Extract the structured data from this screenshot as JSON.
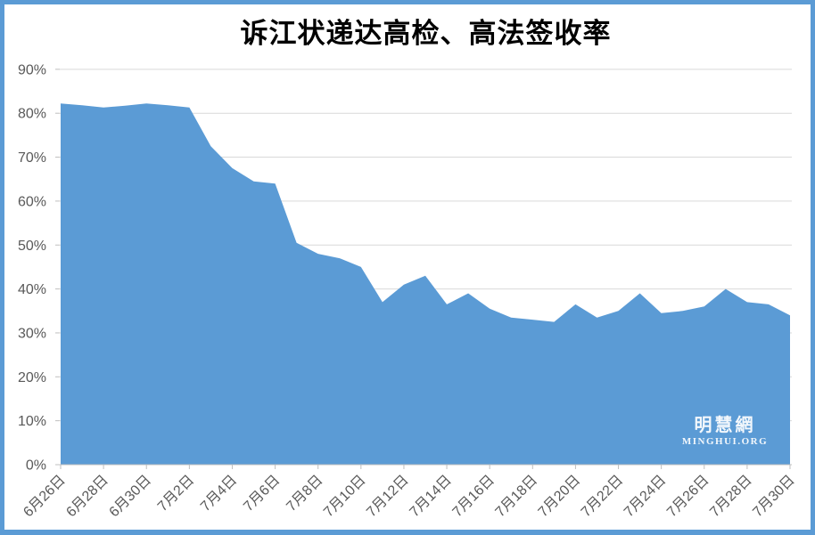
{
  "frame": {
    "border_color": "#5B9BD5",
    "background_color": "#FFFFFF"
  },
  "chart_data": {
    "type": "area",
    "title": "诉江状递达高检、高法签收率",
    "xlabel": "",
    "ylabel": "",
    "ylim": [
      0,
      90
    ],
    "y_tick_step": 10,
    "grid": true,
    "legend": "none",
    "categories": [
      "6月26日",
      "6月27日",
      "6月28日",
      "6月29日",
      "6月30日",
      "7月1日",
      "7月2日",
      "7月3日",
      "7月4日",
      "7月5日",
      "7月6日",
      "7月7日",
      "7月8日",
      "7月9日",
      "7月10日",
      "7月11日",
      "7月12日",
      "7月13日",
      "7月14日",
      "7月15日",
      "7月16日",
      "7月17日",
      "7月18日",
      "7月19日",
      "7月20日",
      "7月21日",
      "7月22日",
      "7月23日",
      "7月24日",
      "7月25日",
      "7月26日",
      "7月27日",
      "7月28日",
      "7月29日",
      "7月30日"
    ],
    "values": [
      82.2,
      81.8,
      81.3,
      81.7,
      82.2,
      81.8,
      81.3,
      72.5,
      67.5,
      64.5,
      64.0,
      50.5,
      48.0,
      47.0,
      45.0,
      37.0,
      41.0,
      43.0,
      36.5,
      39.0,
      35.5,
      33.5,
      33.0,
      32.5,
      36.5,
      33.5,
      35.0,
      39.0,
      34.5,
      35.0,
      36.0,
      40.0,
      37.0,
      36.5,
      34.0
    ],
    "y_ticks": [
      "0%",
      "10%",
      "20%",
      "30%",
      "40%",
      "50%",
      "60%",
      "70%",
      "80%",
      "90%"
    ],
    "x_tick_labels": [
      "6月26日",
      "6月28日",
      "6月30日",
      "7月2日",
      "7月4日",
      "7月6日",
      "7月8日",
      "7月10日",
      "7月12日",
      "7月14日",
      "7月16日",
      "7月18日",
      "7月20日",
      "7月22日",
      "7月24日",
      "7月26日",
      "7月28日",
      "7月30日"
    ],
    "x_tick_every": 2,
    "colors": {
      "area_fill": "#5B9BD5",
      "gridline": "#D9D9D9",
      "axis_line": "#BFBFBF",
      "tick_mark": "#BFBFBF",
      "axis_label": "#595959",
      "title": "#000000"
    }
  },
  "watermark": {
    "line1": "明慧網",
    "line2": "MINGHUI.ORG"
  }
}
